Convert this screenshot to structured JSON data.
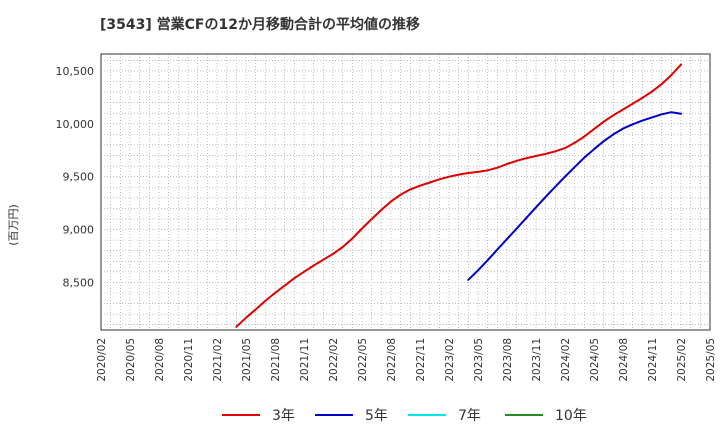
{
  "title": "[3543]  営業CFの12か月移動合計の平均値の推移",
  "chart_data": {
    "type": "line",
    "title": "[3543]  営業CFの12か月移動合計の平均値の推移",
    "xlabel": "",
    "ylabel": "(百万円)",
    "ylim": [
      8050,
      10660
    ],
    "yticks": [
      8500,
      9000,
      9500,
      10000,
      10500
    ],
    "ytick_labels": [
      "8,500",
      "9,000",
      "9,500",
      "10,000",
      "10,500"
    ],
    "xticks": [
      "2020/02",
      "2020/05",
      "2020/08",
      "2020/11",
      "2021/02",
      "2021/05",
      "2021/08",
      "2021/11",
      "2022/02",
      "2022/05",
      "2022/08",
      "2022/11",
      "2023/02",
      "2023/05",
      "2023/08",
      "2023/11",
      "2024/02",
      "2024/05",
      "2024/08",
      "2024/11",
      "2025/02",
      "2025/05"
    ],
    "grid": true,
    "legend_position": "bottom",
    "series": [
      {
        "name": "3年",
        "color": "#e00000",
        "x": [
          "2021/04",
          "2021/05",
          "2021/06",
          "2021/07",
          "2021/08",
          "2021/09",
          "2021/10",
          "2021/11",
          "2021/12",
          "2022/01",
          "2022/02",
          "2022/03",
          "2022/04",
          "2022/05",
          "2022/06",
          "2022/07",
          "2022/08",
          "2022/09",
          "2022/10",
          "2022/11",
          "2022/12",
          "2023/01",
          "2023/02",
          "2023/03",
          "2023/04",
          "2023/05",
          "2023/06",
          "2023/07",
          "2023/08",
          "2023/09",
          "2023/10",
          "2023/11",
          "2023/12",
          "2024/01",
          "2024/02",
          "2024/03",
          "2024/04",
          "2024/05",
          "2024/06",
          "2024/07",
          "2024/08",
          "2024/09",
          "2024/10",
          "2024/11",
          "2024/12",
          "2025/01",
          "2025/02"
        ],
        "values": [
          8080,
          8165,
          8245,
          8325,
          8400,
          8470,
          8540,
          8600,
          8660,
          8715,
          8770,
          8835,
          8915,
          9010,
          9100,
          9185,
          9265,
          9330,
          9380,
          9415,
          9445,
          9475,
          9500,
          9520,
          9535,
          9545,
          9560,
          9585,
          9620,
          9650,
          9675,
          9695,
          9715,
          9740,
          9770,
          9820,
          9880,
          9950,
          10020,
          10080,
          10135,
          10190,
          10245,
          10305,
          10375,
          10460,
          10560
        ]
      },
      {
        "name": "5年",
        "color": "#0000cc",
        "x": [
          "2023/04",
          "2023/05",
          "2023/06",
          "2023/07",
          "2023/08",
          "2023/09",
          "2023/10",
          "2023/11",
          "2023/12",
          "2024/01",
          "2024/02",
          "2024/03",
          "2024/04",
          "2024/05",
          "2024/06",
          "2024/07",
          "2024/08",
          "2024/09",
          "2024/10",
          "2024/11",
          "2024/12",
          "2025/01",
          "2025/02"
        ],
        "values": [
          8525,
          8615,
          8710,
          8810,
          8910,
          9010,
          9110,
          9210,
          9310,
          9405,
          9500,
          9590,
          9680,
          9760,
          9835,
          9900,
          9955,
          9995,
          10030,
          10060,
          10090,
          10110,
          10095
        ]
      },
      {
        "name": "7年",
        "color": "#00e5ee",
        "x": [],
        "values": []
      },
      {
        "name": "10年",
        "color": "#228b22",
        "x": [],
        "values": []
      }
    ]
  }
}
